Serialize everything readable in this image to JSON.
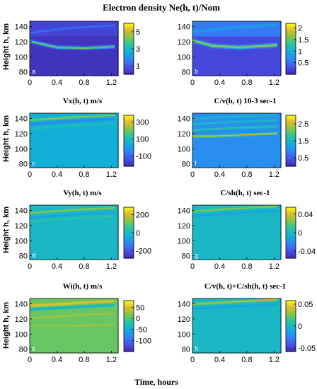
{
  "figure": {
    "title": "Electron density Ne(h, t)/Nom",
    "xlabel": "Time, hours",
    "ylabel": "Height h, km"
  },
  "chart_data": [
    {
      "type": "heatmap",
      "panel": "a",
      "title": "",
      "cb_ticks": [
        "5",
        "3",
        "1"
      ],
      "cb_vals": [
        5,
        3,
        1
      ],
      "cb_range": [
        0,
        6
      ],
      "xlim": [
        0,
        1.3
      ],
      "ylim": [
        75,
        147
      ],
      "xticks": [
        0,
        0.4,
        0.8,
        1.2
      ],
      "xtick_labels": [
        "0",
        "0.4",
        "0.8",
        "1.2"
      ],
      "yticks": [
        80,
        100,
        120,
        140
      ],
      "ytick_labels": [
        "80",
        "100",
        "120",
        "140"
      ],
      "background": 0.3,
      "background_upper": 0.6,
      "ridges": [
        {
          "t": [
            0,
            0.4,
            0.8,
            1.25
          ],
          "h": [
            121,
            113,
            112,
            114
          ],
          "value": 4.5,
          "width": 1.6
        },
        {
          "t": [
            0,
            0.5,
            1.25
          ],
          "h": [
            132,
            138,
            142
          ],
          "value": 1.5,
          "width": 1.2
        }
      ]
    },
    {
      "type": "heatmap",
      "panel": "b",
      "title": "",
      "cb_ticks": [
        "2",
        "1.5",
        "1",
        "0.5"
      ],
      "cb_vals": [
        2,
        1.5,
        1,
        0.5
      ],
      "cb_range": [
        0,
        2.2
      ],
      "xlim": [
        0,
        1.3
      ],
      "ylim": [
        75,
        147
      ],
      "xticks": [
        0,
        0.4,
        0.8,
        1.2
      ],
      "xtick_labels": [
        "0",
        "0.4",
        "0.8",
        "1.2"
      ],
      "yticks": [
        80,
        100,
        120,
        140
      ],
      "ytick_labels": [
        "80",
        "100",
        "120",
        "140"
      ],
      "background": 0.25,
      "background_upper": 0.6,
      "ridges": [
        {
          "t": [
            0,
            0.3,
            0.7,
            1.25
          ],
          "h": [
            122,
            115,
            113,
            116
          ],
          "value": 1.8,
          "width": 2.0
        },
        {
          "t": [
            0,
            0.6,
            1.25
          ],
          "h": [
            134,
            139,
            143
          ],
          "value": 0.9,
          "width": 1.5
        }
      ]
    },
    {
      "type": "heatmap",
      "panel": "c",
      "title": "Vx(h, t) m/s",
      "cb_ticks": [
        "300",
        "100",
        "-100"
      ],
      "cb_vals": [
        300,
        100,
        -100
      ],
      "cb_range": [
        -220,
        380
      ],
      "xlim": [
        0,
        1.3
      ],
      "ylim": [
        75,
        147
      ],
      "xticks": [
        0,
        0.4,
        0.8,
        1.2
      ],
      "xtick_labels": [
        "0",
        "0.4",
        "0.8",
        "1.2"
      ],
      "yticks": [
        80,
        100,
        120,
        140
      ],
      "ytick_labels": [
        "80",
        "100",
        "120",
        "140"
      ],
      "background": 50,
      "ridges": [
        {
          "t": [
            0,
            0.6,
            1.25
          ],
          "h": [
            138,
            142,
            145
          ],
          "value": 230,
          "width": 1.5
        },
        {
          "t": [
            0,
            0.6,
            1.25
          ],
          "h": [
            133,
            137,
            140
          ],
          "value": -50,
          "width": 1.5
        },
        {
          "t": [
            0,
            0.6,
            1.25
          ],
          "h": [
            127,
            131,
            134
          ],
          "value": 120,
          "width": 1.2
        }
      ]
    },
    {
      "type": "heatmap",
      "panel": "f",
      "title": "C/v(h, t) 10-3 sec-1",
      "cb_ticks": [
        "2.5",
        "1.5",
        "0.5"
      ],
      "cb_vals": [
        2.5,
        1.5,
        0.5
      ],
      "cb_range": [
        0,
        3
      ],
      "xlim": [
        0,
        1.3
      ],
      "ylim": [
        75,
        147
      ],
      "xticks": [
        0,
        0.4,
        0.8,
        1.2
      ],
      "xtick_labels": [
        "0",
        "0.4",
        "0.8",
        "1.2"
      ],
      "yticks": [
        80,
        100,
        120,
        140
      ],
      "ytick_labels": [
        "80",
        "100",
        "120",
        "140"
      ],
      "background": 1.0,
      "ridges": [
        {
          "t": [
            0.3,
            0.8,
            1.25
          ],
          "h": [
            117,
            119,
            121
          ],
          "value": 2.6,
          "width": 1.4
        },
        {
          "t": [
            0,
            0.6,
            1.25
          ],
          "h": [
            125,
            128,
            130
          ],
          "value": 1.9,
          "width": 1.3
        },
        {
          "t": [
            0,
            0.6,
            1.25
          ],
          "h": [
            133,
            136,
            138
          ],
          "value": 1.7,
          "width": 1.2
        },
        {
          "t": [
            0,
            0.6,
            1.25
          ],
          "h": [
            140,
            143,
            145
          ],
          "value": 1.6,
          "width": 1.2
        }
      ]
    },
    {
      "type": "heatmap",
      "panel": "d",
      "title": "Vy(h, t) m/s",
      "cb_ticks": [
        "200",
        "0",
        "-200"
      ],
      "cb_vals": [
        200,
        0,
        -200
      ],
      "cb_range": [
        -280,
        280
      ],
      "xlim": [
        0,
        1.3
      ],
      "ylim": [
        75,
        147
      ],
      "xticks": [
        0,
        0.4,
        0.8,
        1.2
      ],
      "xtick_labels": [
        "0",
        "0.4",
        "0.8",
        "1.2"
      ],
      "yticks": [
        80,
        100,
        120,
        140
      ],
      "ytick_labels": [
        "80",
        "100",
        "120",
        "140"
      ],
      "background": 0,
      "ridges": [
        {
          "t": [
            0,
            0.6,
            1.25
          ],
          "h": [
            137,
            141,
            144
          ],
          "value": 150,
          "width": 1.5
        },
        {
          "t": [
            0,
            0.6,
            1.25
          ],
          "h": [
            131,
            135,
            138
          ],
          "value": -70,
          "width": 1.3
        },
        {
          "t": [
            0,
            0.6,
            1.25
          ],
          "h": [
            126,
            130,
            133
          ],
          "value": 60,
          "width": 1.1
        }
      ]
    },
    {
      "type": "heatmap",
      "panel": "g",
      "title": "C/sh(h, t) sec-1",
      "cb_ticks": [
        "0.04",
        "0",
        "-0.04"
      ],
      "cb_vals": [
        0.04,
        0,
        -0.04
      ],
      "cb_range": [
        -0.055,
        0.055
      ],
      "xlim": [
        0,
        1.3
      ],
      "ylim": [
        75,
        147
      ],
      "xticks": [
        0,
        0.4,
        0.8,
        1.2
      ],
      "xtick_labels": [
        "0",
        "0.4",
        "0.8",
        "1.2"
      ],
      "yticks": [
        80,
        100,
        120,
        140
      ],
      "ytick_labels": [
        "80",
        "100",
        "120",
        "140"
      ],
      "background": 0,
      "ridges": [
        {
          "t": [
            0,
            0.6,
            1.25
          ],
          "h": [
            139,
            143,
            146
          ],
          "value": 0.03,
          "width": 1.4
        },
        {
          "t": [
            0,
            0.6,
            1.25
          ],
          "h": [
            133,
            137,
            140
          ],
          "value": -0.015,
          "width": 1.2
        }
      ]
    },
    {
      "type": "heatmap",
      "panel": "e",
      "title": "Wi(h, t) m/s",
      "cb_ticks": [
        "50",
        "0",
        "-50",
        "-100"
      ],
      "cb_vals": [
        50,
        0,
        -50,
        -100
      ],
      "cb_range": [
        -150,
        80
      ],
      "xlim": [
        0,
        1.3
      ],
      "ylim": [
        75,
        147
      ],
      "xticks": [
        0,
        0.4,
        0.8,
        1.2
      ],
      "xtick_labels": [
        "0",
        "0.4",
        "0.8",
        "1.2"
      ],
      "yticks": [
        80,
        100,
        120,
        140
      ],
      "ytick_labels": [
        "80",
        "100",
        "120",
        "140"
      ],
      "background": 10,
      "ridges": [
        {
          "t": [
            0,
            0.6,
            1.25
          ],
          "h": [
            138,
            141,
            144
          ],
          "value": 60,
          "width": 1.6
        },
        {
          "t": [
            0,
            0.6,
            1.25
          ],
          "h": [
            133,
            136,
            139
          ],
          "value": -50,
          "width": 1.5
        },
        {
          "t": [
            0,
            0.6,
            1.25
          ],
          "h": [
            121,
            125,
            128
          ],
          "value": 35,
          "width": 1.1
        },
        {
          "t": [
            0.6,
            0.9,
            1.25
          ],
          "h": [
            111,
            112,
            113
          ],
          "value": 40,
          "width": 0.8
        }
      ]
    },
    {
      "type": "heatmap",
      "panel": "h",
      "title": "C/v(h, t)+C/sh(h, t) sec-1",
      "cb_ticks": [
        "0.05",
        "0",
        "-0.05"
      ],
      "cb_vals": [
        0.05,
        0,
        -0.05
      ],
      "cb_range": [
        -0.058,
        0.058
      ],
      "xlim": [
        0,
        1.3
      ],
      "ylim": [
        75,
        147
      ],
      "xticks": [
        0,
        0.4,
        0.8,
        1.2
      ],
      "xtick_labels": [
        "0",
        "0.4",
        "0.8",
        "1.2"
      ],
      "yticks": [
        80,
        100,
        120,
        140
      ],
      "ytick_labels": [
        "80",
        "100",
        "120",
        "140"
      ],
      "background": 0,
      "ridges": [
        {
          "t": [
            0,
            0.6,
            1.25
          ],
          "h": [
            140,
            143,
            146
          ],
          "value": 0.04,
          "width": 1.4
        },
        {
          "t": [
            0,
            0.6,
            1.25
          ],
          "h": [
            134,
            137,
            140
          ],
          "value": -0.015,
          "width": 1.2
        }
      ]
    }
  ]
}
